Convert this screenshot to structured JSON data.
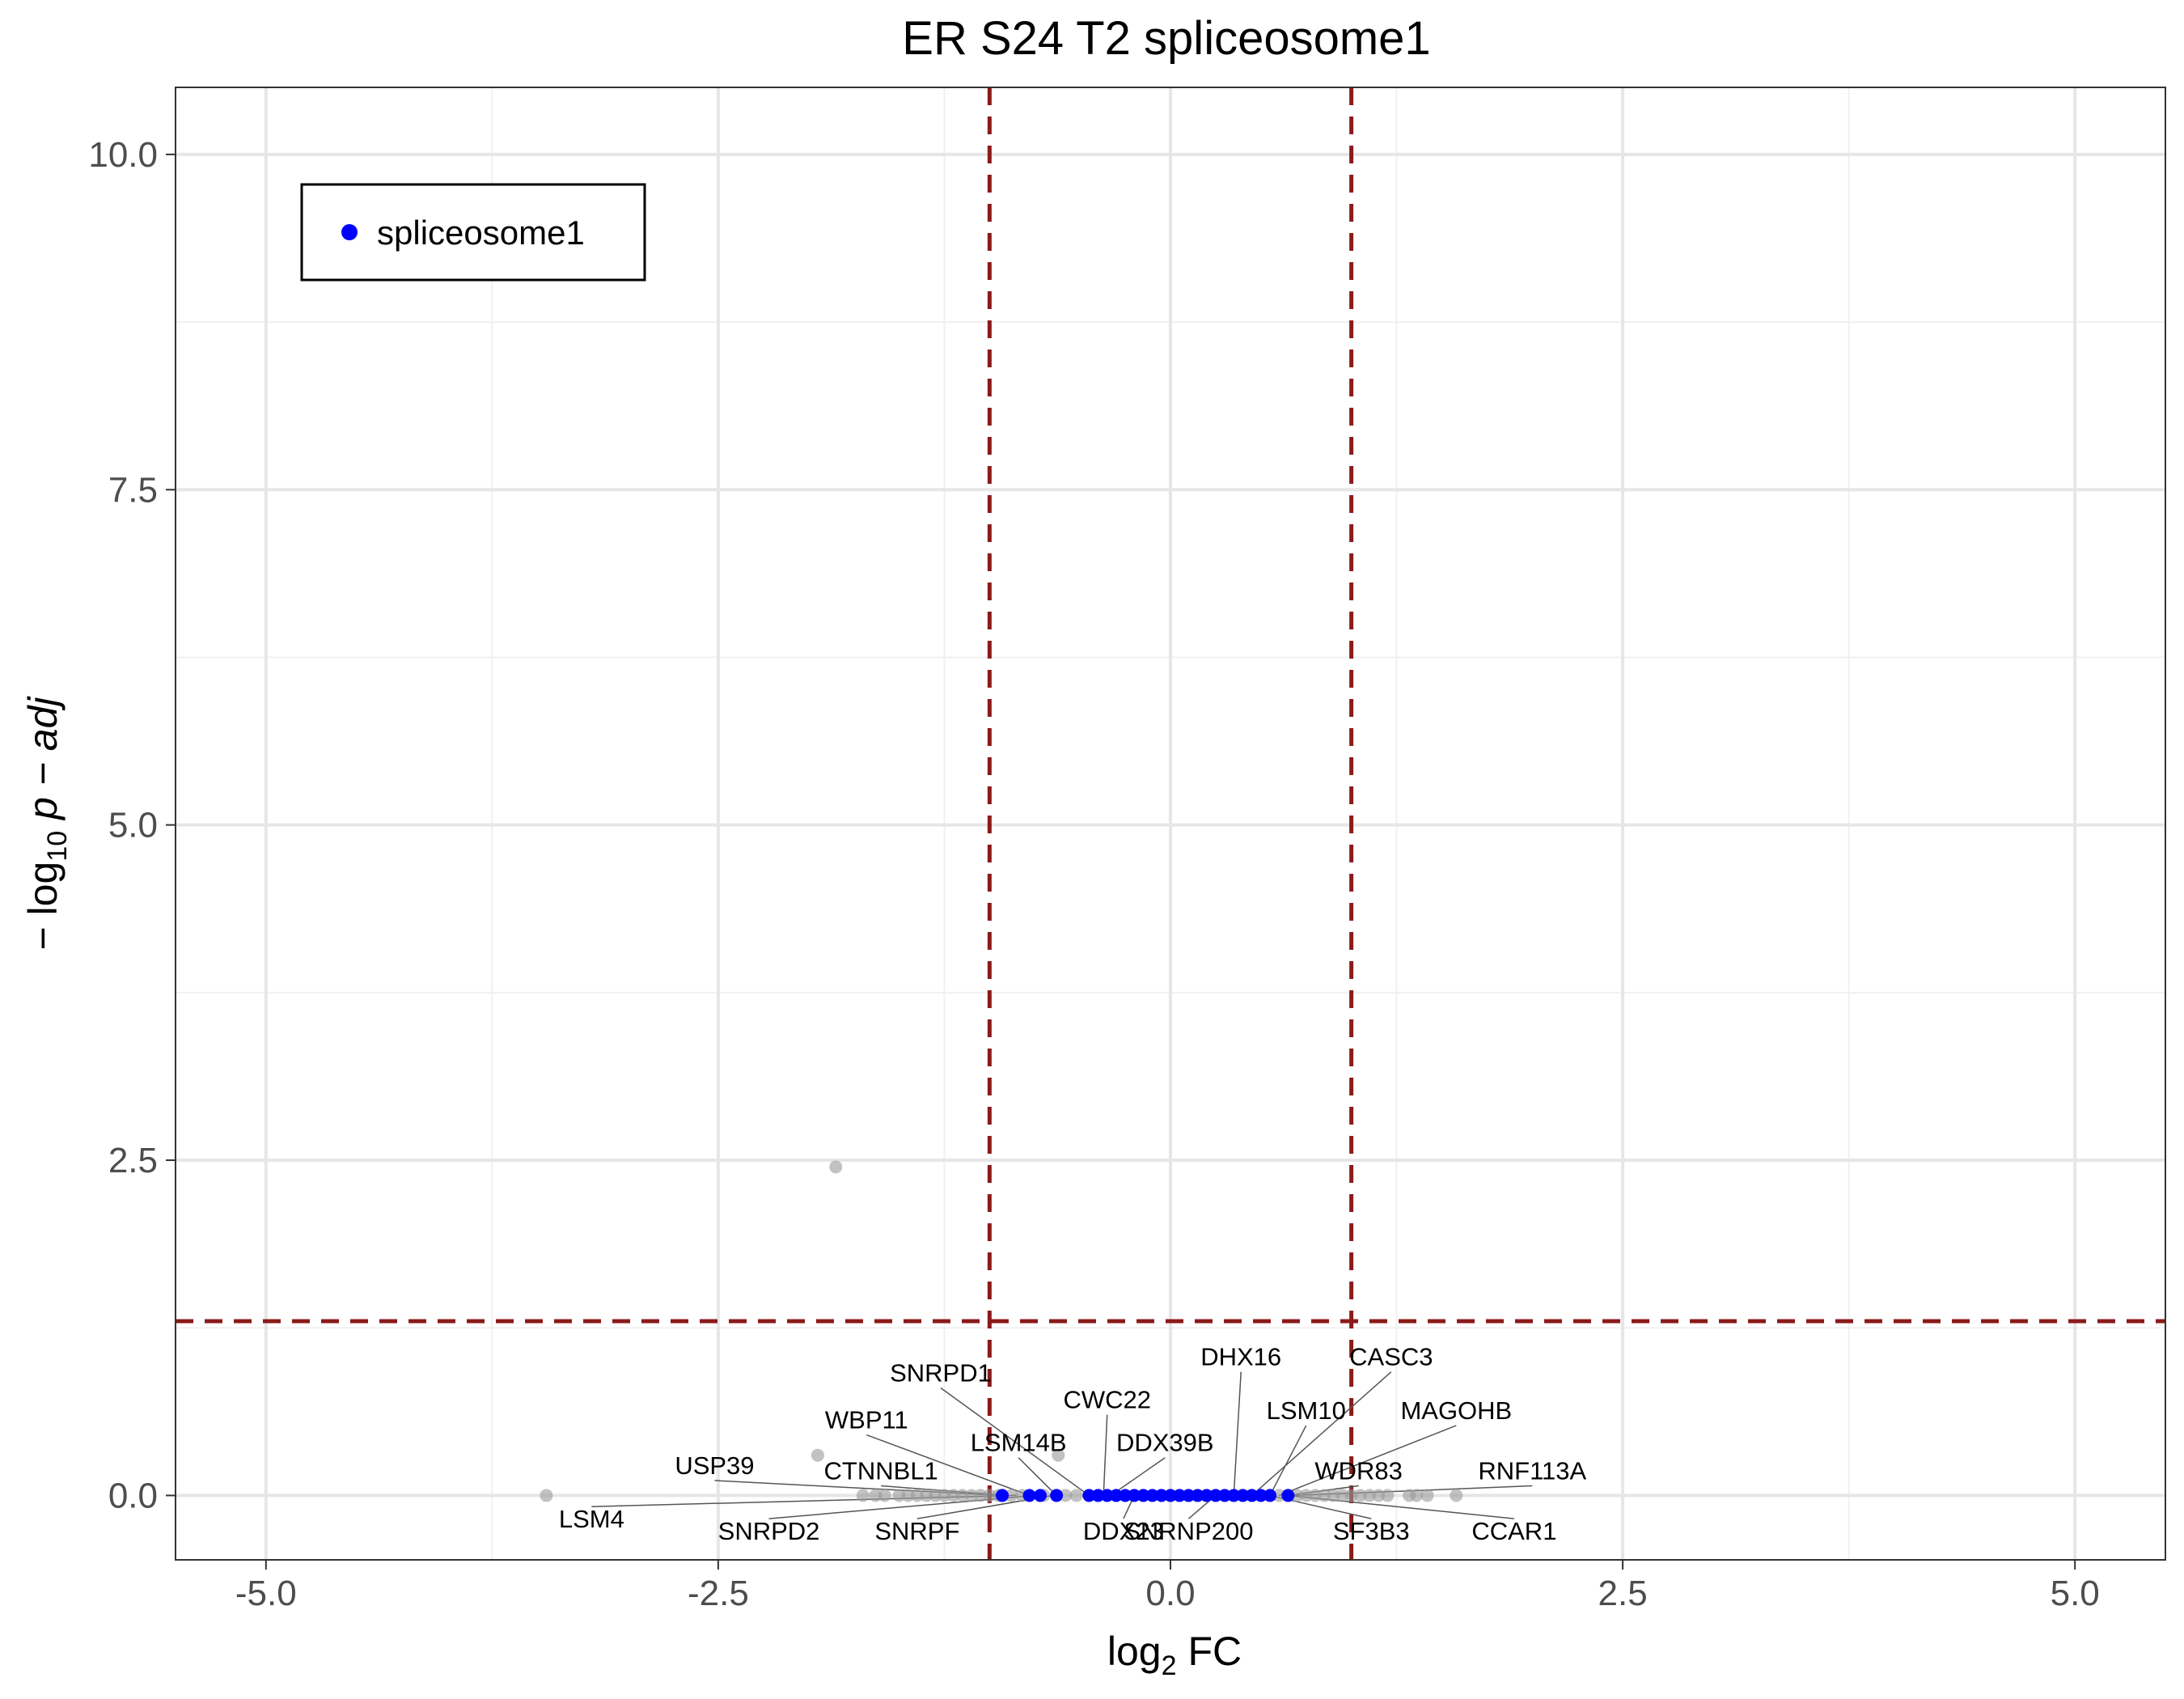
{
  "chart_data": {
    "type": "scatter",
    "title": "ER S24 T2 spliceosome1",
    "xlabel": {
      "main": "log",
      "sub": "2",
      "suffix": " FC"
    },
    "ylabel": {
      "prefix": "− log",
      "sub": "10",
      "suffix": " p − adj"
    },
    "xlim": [
      -5.5,
      5.5
    ],
    "ylim": [
      -0.48,
      10.5
    ],
    "x_ticks": [
      -5.0,
      -2.5,
      0.0,
      2.5,
      5.0
    ],
    "x_tick_labels": [
      "-5.0",
      "-2.5",
      "0.0",
      "2.5",
      "5.0"
    ],
    "y_ticks": [
      0.0,
      2.5,
      5.0,
      7.5,
      10.0
    ],
    "y_tick_labels": [
      "0.0",
      "2.5",
      "5.0",
      "7.5",
      "10.0"
    ],
    "grid": true,
    "thresholds": {
      "x": [
        -1,
        1
      ],
      "y": 1.3,
      "color": "#8b1a1a"
    },
    "legend": {
      "position": "top-left",
      "entries": [
        {
          "label": "spliceosome1",
          "color": "#0000ff"
        }
      ]
    },
    "colors": {
      "background_points": "#999999",
      "highlight_points": "#0000ff",
      "label_lines": "#555555"
    },
    "series": [
      {
        "name": "spliceosome1",
        "color": "#0000ff",
        "points": [
          {
            "x": -0.93,
            "y": 0
          },
          {
            "x": -0.78,
            "y": 0
          },
          {
            "x": -0.72,
            "y": 0
          },
          {
            "x": -0.63,
            "y": 0
          },
          {
            "x": -0.45,
            "y": 0
          },
          {
            "x": -0.4,
            "y": 0
          },
          {
            "x": -0.35,
            "y": 0
          },
          {
            "x": -0.3,
            "y": 0
          },
          {
            "x": -0.25,
            "y": 0
          },
          {
            "x": -0.2,
            "y": 0
          },
          {
            "x": -0.15,
            "y": 0
          },
          {
            "x": -0.1,
            "y": 0
          },
          {
            "x": -0.05,
            "y": 0
          },
          {
            "x": 0.0,
            "y": 0
          },
          {
            "x": 0.05,
            "y": 0
          },
          {
            "x": 0.1,
            "y": 0
          },
          {
            "x": 0.15,
            "y": 0
          },
          {
            "x": 0.2,
            "y": 0
          },
          {
            "x": 0.25,
            "y": 0
          },
          {
            "x": 0.3,
            "y": 0
          },
          {
            "x": 0.35,
            "y": 0
          },
          {
            "x": 0.4,
            "y": 0
          },
          {
            "x": 0.45,
            "y": 0
          },
          {
            "x": 0.5,
            "y": 0
          },
          {
            "x": 0.55,
            "y": 0
          },
          {
            "x": 0.65,
            "y": 0
          }
        ]
      },
      {
        "name": "",
        "color": "#999999",
        "points": [
          {
            "x": -3.45,
            "y": 0
          },
          {
            "x": -1.95,
            "y": 0.3
          },
          {
            "x": -1.85,
            "y": 2.45
          },
          {
            "x": -0.62,
            "y": 0.3
          },
          {
            "x": -1.7,
            "y": 0
          },
          {
            "x": -1.63,
            "y": 0
          },
          {
            "x": -1.58,
            "y": 0
          },
          {
            "x": -1.5,
            "y": 0
          },
          {
            "x": -1.45,
            "y": 0
          },
          {
            "x": -1.4,
            "y": 0
          },
          {
            "x": -1.35,
            "y": 0
          },
          {
            "x": -1.3,
            "y": 0
          },
          {
            "x": -1.25,
            "y": 0
          },
          {
            "x": -1.2,
            "y": 0
          },
          {
            "x": -1.15,
            "y": 0
          },
          {
            "x": -1.1,
            "y": 0
          },
          {
            "x": -1.05,
            "y": 0
          },
          {
            "x": -1.0,
            "y": 0
          },
          {
            "x": -0.95,
            "y": 0
          },
          {
            "x": -0.88,
            "y": 0
          },
          {
            "x": -0.82,
            "y": 0
          },
          {
            "x": -0.7,
            "y": 0
          },
          {
            "x": -0.58,
            "y": 0
          },
          {
            "x": -0.52,
            "y": 0
          },
          {
            "x": 0.6,
            "y": 0
          },
          {
            "x": 0.7,
            "y": 0
          },
          {
            "x": 0.75,
            "y": 0
          },
          {
            "x": 0.8,
            "y": 0
          },
          {
            "x": 0.85,
            "y": 0
          },
          {
            "x": 0.9,
            "y": 0
          },
          {
            "x": 0.95,
            "y": 0
          },
          {
            "x": 1.0,
            "y": 0
          },
          {
            "x": 1.05,
            "y": 0
          },
          {
            "x": 1.1,
            "y": 0
          },
          {
            "x": 1.15,
            "y": 0
          },
          {
            "x": 1.2,
            "y": 0
          },
          {
            "x": 1.32,
            "y": 0
          },
          {
            "x": 1.36,
            "y": 0
          },
          {
            "x": 1.42,
            "y": 0
          },
          {
            "x": 1.58,
            "y": 0
          }
        ]
      }
    ],
    "annotations": [
      {
        "text": "SNRPD1",
        "x": -0.45,
        "y": 0,
        "lx": -1.27,
        "ly": 0.85,
        "anchor": "middle"
      },
      {
        "text": "CWC22",
        "x": -0.37,
        "y": 0,
        "lx": -0.35,
        "ly": 0.65,
        "anchor": "middle"
      },
      {
        "text": "WBP11",
        "x": -0.78,
        "y": 0,
        "lx": -1.68,
        "ly": 0.5,
        "anchor": "middle"
      },
      {
        "text": "LSM14B",
        "x": -0.63,
        "y": 0,
        "lx": -0.84,
        "ly": 0.33,
        "anchor": "middle"
      },
      {
        "text": "DDX39B",
        "x": -0.33,
        "y": 0,
        "lx": -0.03,
        "ly": 0.33,
        "anchor": "middle"
      },
      {
        "text": "USP39",
        "x": -0.93,
        "y": 0,
        "lx": -2.52,
        "ly": 0.16,
        "anchor": "middle"
      },
      {
        "text": "CTNNBL1",
        "x": -0.9,
        "y": 0,
        "lx": -1.6,
        "ly": 0.12,
        "anchor": "middle"
      },
      {
        "text": "LSM4",
        "x": -0.85,
        "y": 0,
        "lx": -3.2,
        "ly": -0.24,
        "anchor": "middle"
      },
      {
        "text": "SNRPD2",
        "x": -0.75,
        "y": 0,
        "lx": -2.22,
        "ly": -0.33,
        "anchor": "middle"
      },
      {
        "text": "SNRPF",
        "x": -0.65,
        "y": 0,
        "lx": -1.4,
        "ly": -0.33,
        "anchor": "middle"
      },
      {
        "text": "DDX23",
        "x": -0.2,
        "y": 0,
        "lx": -0.26,
        "ly": -0.33,
        "anchor": "middle"
      },
      {
        "text": "SNRNP200",
        "x": 0.25,
        "y": 0,
        "lx": 0.1,
        "ly": -0.33,
        "anchor": "middle"
      },
      {
        "text": "DHX16",
        "x": 0.35,
        "y": 0,
        "lx": 0.39,
        "ly": 0.97,
        "anchor": "middle"
      },
      {
        "text": "CASC3",
        "x": 0.45,
        "y": 0,
        "lx": 1.22,
        "ly": 0.97,
        "anchor": "middle"
      },
      {
        "text": "LSM10",
        "x": 0.55,
        "y": 0,
        "lx": 0.75,
        "ly": 0.57,
        "anchor": "middle"
      },
      {
        "text": "MAGOHB",
        "x": 0.6,
        "y": 0,
        "lx": 1.58,
        "ly": 0.57,
        "anchor": "middle"
      },
      {
        "text": "WDR83",
        "x": 0.65,
        "y": 0,
        "lx": 1.04,
        "ly": 0.12,
        "anchor": "middle"
      },
      {
        "text": "RNF113A",
        "x": 0.68,
        "y": 0,
        "lx": 2.0,
        "ly": 0.12,
        "anchor": "middle"
      },
      {
        "text": "SF3B3",
        "x": 0.55,
        "y": 0,
        "lx": 1.11,
        "ly": -0.33,
        "anchor": "middle"
      },
      {
        "text": "CCAR1",
        "x": 0.65,
        "y": 0,
        "lx": 1.9,
        "ly": -0.33,
        "anchor": "middle"
      }
    ]
  }
}
